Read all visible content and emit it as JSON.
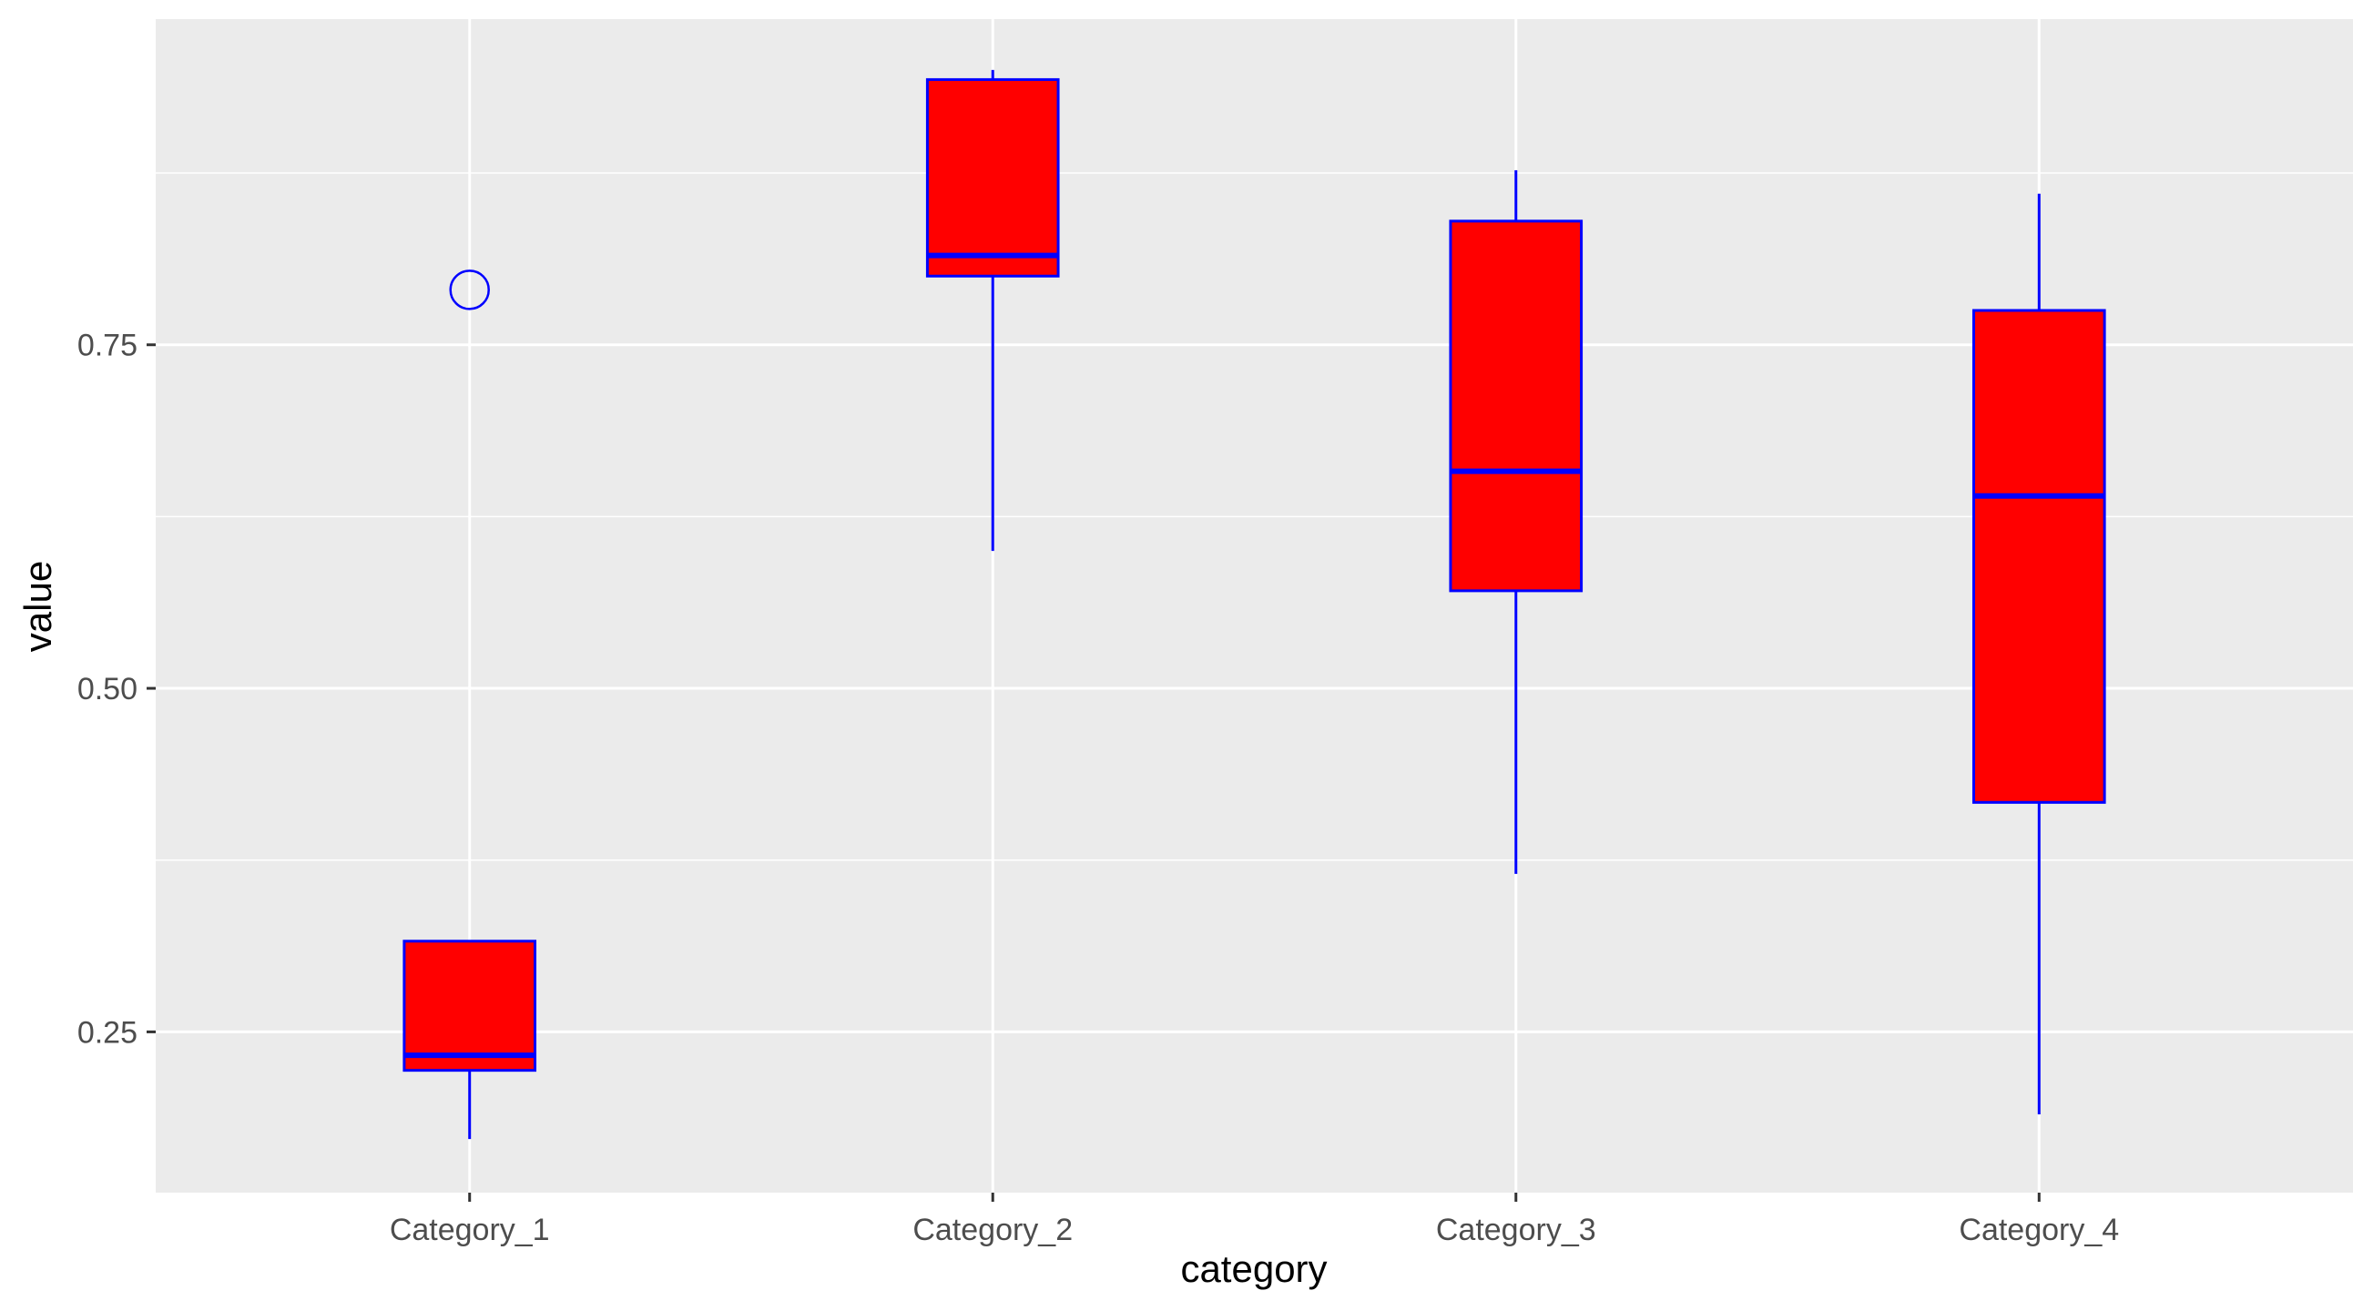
{
  "chart_data": {
    "type": "boxplot",
    "xlabel": "category",
    "ylabel": "value",
    "categories": [
      "Category_1",
      "Category_2",
      "Category_3",
      "Category_4"
    ],
    "boxes": [
      {
        "category": "Category_1",
        "whisker_low": 0.172,
        "q1": 0.222,
        "median": 0.233,
        "q3": 0.316,
        "whisker_high": 0.316,
        "outliers": [
          0.79
        ]
      },
      {
        "category": "Category_2",
        "whisker_low": 0.6,
        "q1": 0.8,
        "median": 0.815,
        "q3": 0.943,
        "whisker_high": 0.95,
        "outliers": []
      },
      {
        "category": "Category_3",
        "whisker_low": 0.365,
        "q1": 0.571,
        "median": 0.658,
        "q3": 0.84,
        "whisker_high": 0.877,
        "outliers": []
      },
      {
        "category": "Category_4",
        "whisker_low": 0.19,
        "q1": 0.417,
        "median": 0.64,
        "q3": 0.775,
        "whisker_high": 0.86,
        "outliers": []
      }
    ],
    "yticks": [
      0.25,
      0.5,
      0.75
    ],
    "ytick_labels": [
      "0.25",
      "0.50",
      "0.75"
    ],
    "ylim": [
      0.133,
      0.987
    ],
    "grid": true,
    "legend": "none",
    "colors": {
      "box_fill": "#ff0000",
      "box_line": "#0000ff",
      "panel_bg": "#ebebeb",
      "grid": "#ffffff"
    }
  }
}
